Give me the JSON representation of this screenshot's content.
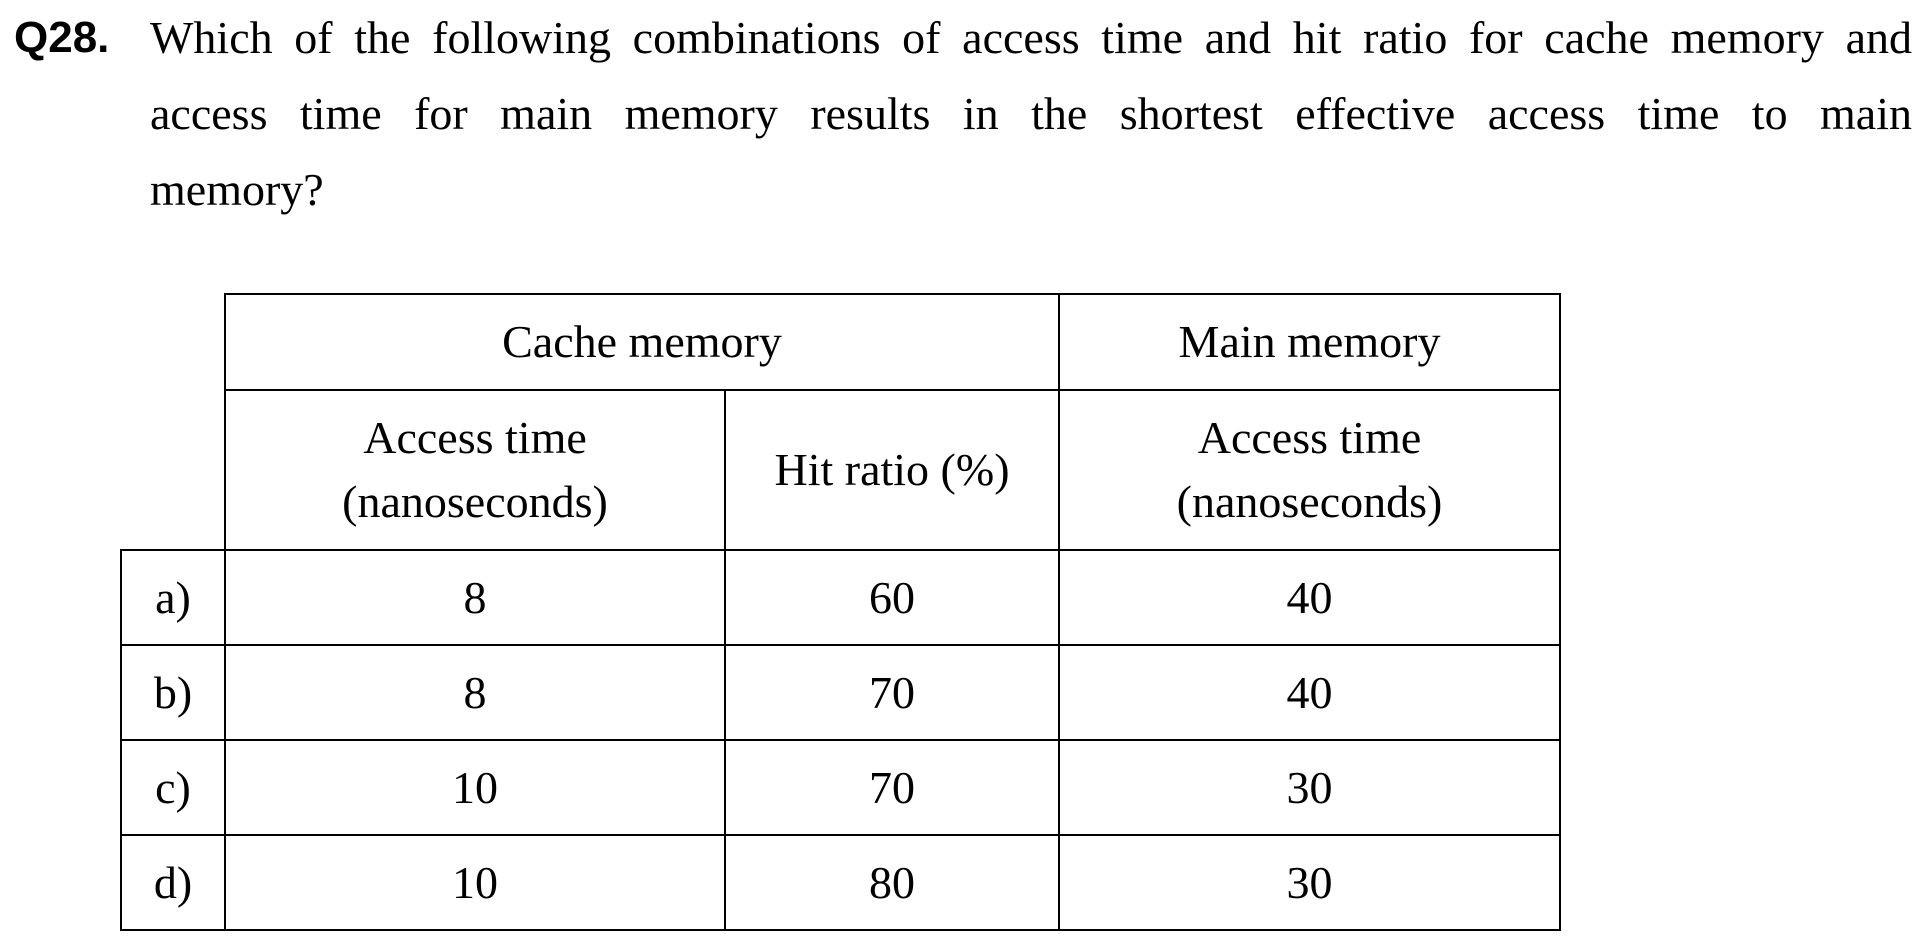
{
  "question": {
    "number": "Q28.",
    "lines": [
      "Which of the following combinations of access time and hit ratio for cache memory and",
      "access time for main memory results in the shortest effective access time to main",
      "memory?"
    ]
  },
  "table": {
    "group_headers": {
      "cache_memory": "Cache memory",
      "main_memory": "Main memory"
    },
    "sub_headers": {
      "cache_access_time": [
        "Access time",
        "(nanoseconds)"
      ],
      "hit_ratio": "Hit ratio (%)",
      "main_access_time": [
        "Access time",
        "(nanoseconds)"
      ]
    },
    "rows": [
      {
        "label": "a)",
        "cache_access_time": "8",
        "hit_ratio": "60",
        "main_access_time": "40"
      },
      {
        "label": "b)",
        "cache_access_time": "8",
        "hit_ratio": "70",
        "main_access_time": "40"
      },
      {
        "label": "c)",
        "cache_access_time": "10",
        "hit_ratio": "70",
        "main_access_time": "30"
      },
      {
        "label": "d)",
        "cache_access_time": "10",
        "hit_ratio": "80",
        "main_access_time": "30"
      }
    ]
  }
}
